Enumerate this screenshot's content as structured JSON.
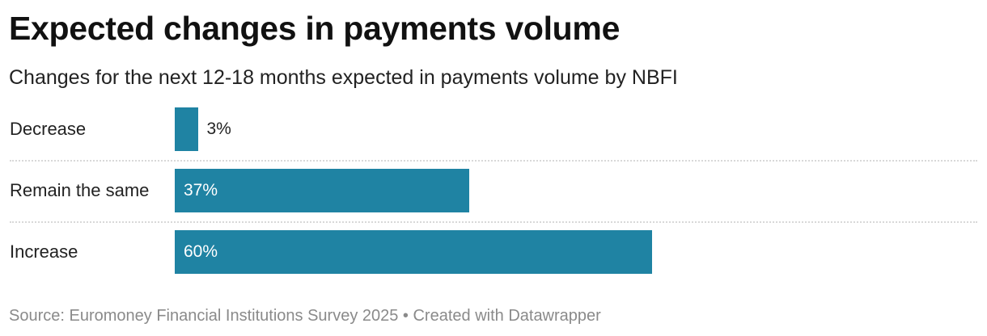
{
  "header": {
    "title": "Expected changes in payments volume",
    "subtitle": "Changes for the next 12-18 months expected in payments volume by NBFI"
  },
  "footer": {
    "source": "Source: Euromoney Financial Institutions Survey 2025 • Created with Datawrapper"
  },
  "colors": {
    "bar": "#1f83a3"
  },
  "chart_data": {
    "type": "bar",
    "orientation": "horizontal",
    "title": "Expected changes in payments volume",
    "subtitle": "Changes for the next 12-18 months expected in payments volume by NBFI",
    "categories": [
      "Decrease",
      "Remain the same",
      "Increase"
    ],
    "values": [
      3,
      37,
      60
    ],
    "value_labels": [
      "3%",
      "37%",
      "60%"
    ],
    "unit": "%",
    "xlim": [
      0,
      100
    ],
    "grid": false,
    "legend": "none"
  }
}
